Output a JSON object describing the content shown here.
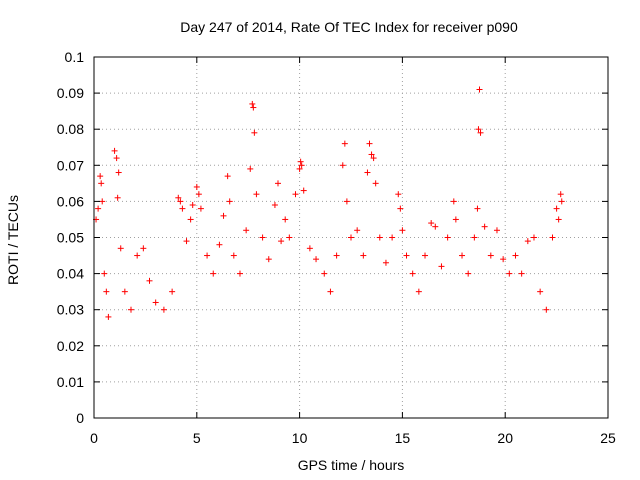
{
  "chart_data": {
    "type": "scatter",
    "title": "Day 247 of 2014, Rate Of TEC Index for receiver p090",
    "xlabel": "GPS time / hours",
    "ylabel": "ROTI / TECUs",
    "xlim": [
      0,
      25
    ],
    "ylim": [
      0,
      0.1
    ],
    "grid": true,
    "x_ticks": [
      0,
      5,
      10,
      15,
      20,
      25
    ],
    "x_tick_labels": [
      "0",
      "5",
      "10",
      "15",
      "20",
      "25"
    ],
    "y_ticks": [
      0,
      0.01,
      0.02,
      0.03,
      0.04,
      0.05,
      0.06,
      0.07,
      0.08,
      0.09,
      0.1
    ],
    "y_tick_labels": [
      "0",
      "0.01",
      "0.02",
      "0.03",
      "0.04",
      "0.05",
      "0.06",
      "0.07",
      "0.08",
      "0.09",
      "0.1"
    ],
    "marker": "+",
    "color": "#ff0000",
    "series": [
      {
        "name": "ROTI p090",
        "points": [
          [
            0.1,
            0.055
          ],
          [
            0.2,
            0.058
          ],
          [
            0.3,
            0.067
          ],
          [
            0.35,
            0.065
          ],
          [
            0.4,
            0.06
          ],
          [
            0.5,
            0.04
          ],
          [
            0.6,
            0.035
          ],
          [
            0.7,
            0.028
          ],
          [
            1.0,
            0.074
          ],
          [
            1.1,
            0.072
          ],
          [
            1.2,
            0.068
          ],
          [
            1.15,
            0.061
          ],
          [
            1.3,
            0.047
          ],
          [
            1.5,
            0.035
          ],
          [
            1.8,
            0.03
          ],
          [
            2.1,
            0.045
          ],
          [
            2.4,
            0.047
          ],
          [
            2.7,
            0.038
          ],
          [
            3.0,
            0.032
          ],
          [
            3.4,
            0.03
          ],
          [
            3.8,
            0.035
          ],
          [
            4.1,
            0.061
          ],
          [
            4.2,
            0.06
          ],
          [
            4.3,
            0.058
          ],
          [
            4.5,
            0.049
          ],
          [
            4.7,
            0.055
          ],
          [
            4.8,
            0.059
          ],
          [
            5.0,
            0.064
          ],
          [
            5.1,
            0.062
          ],
          [
            5.2,
            0.058
          ],
          [
            5.5,
            0.045
          ],
          [
            5.8,
            0.04
          ],
          [
            6.1,
            0.048
          ],
          [
            6.3,
            0.056
          ],
          [
            6.5,
            0.067
          ],
          [
            6.6,
            0.06
          ],
          [
            6.8,
            0.045
          ],
          [
            7.1,
            0.04
          ],
          [
            7.4,
            0.052
          ],
          [
            7.6,
            0.069
          ],
          [
            7.7,
            0.087
          ],
          [
            7.75,
            0.086
          ],
          [
            7.8,
            0.079
          ],
          [
            7.9,
            0.062
          ],
          [
            8.2,
            0.05
          ],
          [
            8.5,
            0.044
          ],
          [
            8.8,
            0.059
          ],
          [
            8.95,
            0.065
          ],
          [
            9.1,
            0.049
          ],
          [
            9.3,
            0.055
          ],
          [
            9.5,
            0.05
          ],
          [
            9.8,
            0.062
          ],
          [
            10.0,
            0.069
          ],
          [
            10.05,
            0.071
          ],
          [
            10.1,
            0.07
          ],
          [
            10.2,
            0.063
          ],
          [
            10.5,
            0.047
          ],
          [
            10.8,
            0.044
          ],
          [
            11.2,
            0.04
          ],
          [
            11.5,
            0.035
          ],
          [
            11.8,
            0.045
          ],
          [
            12.1,
            0.07
          ],
          [
            12.2,
            0.076
          ],
          [
            12.3,
            0.06
          ],
          [
            12.5,
            0.05
          ],
          [
            12.8,
            0.052
          ],
          [
            13.1,
            0.045
          ],
          [
            13.3,
            0.068
          ],
          [
            13.4,
            0.076
          ],
          [
            13.5,
            0.073
          ],
          [
            13.6,
            0.072
          ],
          [
            13.7,
            0.065
          ],
          [
            13.9,
            0.05
          ],
          [
            14.2,
            0.043
          ],
          [
            14.5,
            0.05
          ],
          [
            14.8,
            0.062
          ],
          [
            14.9,
            0.058
          ],
          [
            15.0,
            0.052
          ],
          [
            15.2,
            0.045
          ],
          [
            15.5,
            0.04
          ],
          [
            15.8,
            0.035
          ],
          [
            16.1,
            0.045
          ],
          [
            16.4,
            0.054
          ],
          [
            16.6,
            0.053
          ],
          [
            16.9,
            0.042
          ],
          [
            17.2,
            0.05
          ],
          [
            17.5,
            0.06
          ],
          [
            17.6,
            0.055
          ],
          [
            17.9,
            0.045
          ],
          [
            18.2,
            0.04
          ],
          [
            18.5,
            0.05
          ],
          [
            18.65,
            0.058
          ],
          [
            18.7,
            0.08
          ],
          [
            18.75,
            0.091
          ],
          [
            18.8,
            0.079
          ],
          [
            19.0,
            0.053
          ],
          [
            19.3,
            0.045
          ],
          [
            19.6,
            0.052
          ],
          [
            19.9,
            0.044
          ],
          [
            20.2,
            0.04
          ],
          [
            20.5,
            0.045
          ],
          [
            20.8,
            0.04
          ],
          [
            21.1,
            0.049
          ],
          [
            21.4,
            0.05
          ],
          [
            21.7,
            0.035
          ],
          [
            22.0,
            0.03
          ],
          [
            22.3,
            0.05
          ],
          [
            22.5,
            0.058
          ],
          [
            22.6,
            0.055
          ],
          [
            22.7,
            0.062
          ],
          [
            22.75,
            0.06
          ]
        ]
      }
    ]
  }
}
